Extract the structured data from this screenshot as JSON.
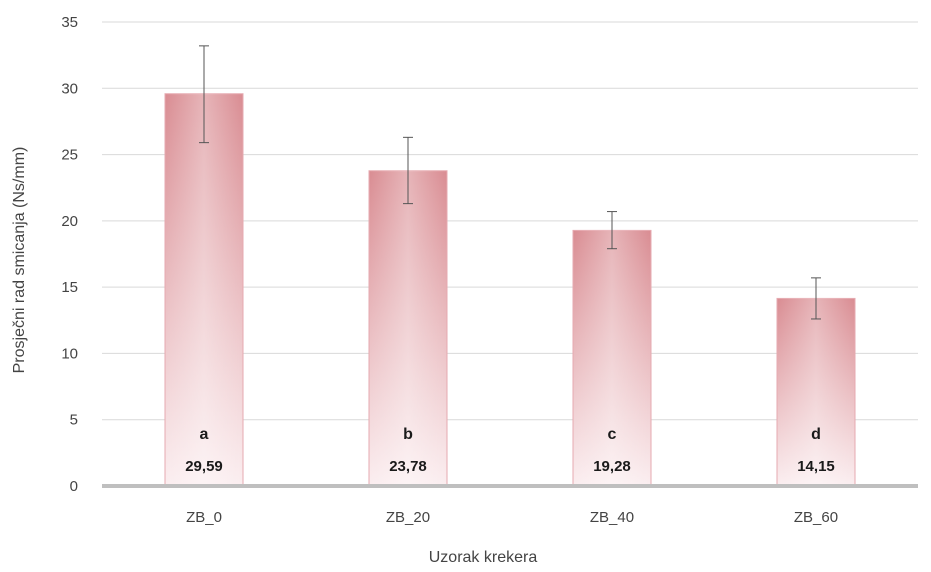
{
  "chart_data": {
    "type": "bar",
    "categories": [
      "ZB_0",
      "ZB_20",
      "ZB_40",
      "ZB_60"
    ],
    "values": [
      29.59,
      23.78,
      19.28,
      14.15
    ],
    "value_labels": [
      "29,59",
      "23,78",
      "19,28",
      "14,15"
    ],
    "group_letters": [
      "a",
      "b",
      "c",
      "d"
    ],
    "error_bars": [
      {
        "low": 25.9,
        "high": 33.2
      },
      {
        "low": 21.3,
        "high": 26.3
      },
      {
        "low": 17.9,
        "high": 20.7
      },
      {
        "low": 12.6,
        "high": 15.7
      }
    ],
    "title": "",
    "xlabel": "Uzorak krekera",
    "ylabel": "Prosječni rad smicanja (Ns/mm)",
    "ylim": [
      0,
      35
    ],
    "yticks": [
      0,
      5,
      10,
      15,
      20,
      25,
      30,
      35
    ],
    "grid": true,
    "legend": "none",
    "bar_color": "#d98c92",
    "bar_color_light": "#fbeef0",
    "grid_color": "#d9d9d9",
    "axis_color": "#bfbfbf"
  }
}
